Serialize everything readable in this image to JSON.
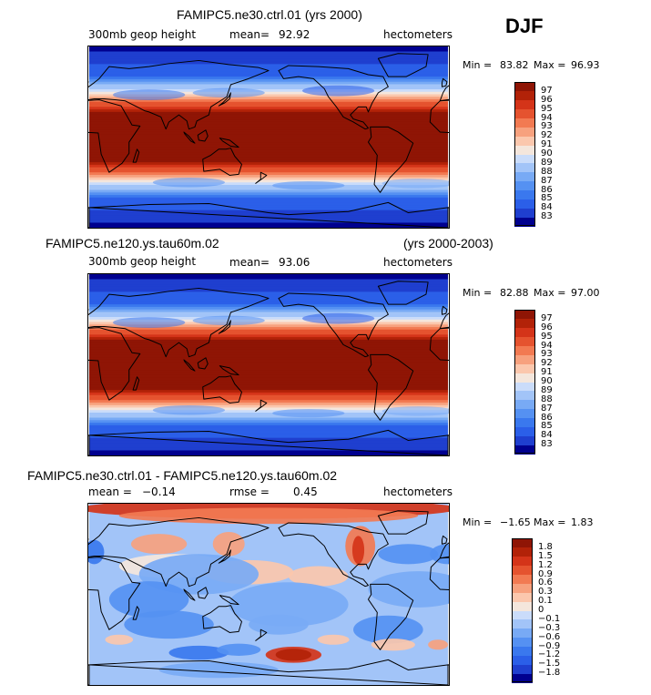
{
  "season": "DJF",
  "chart_data": [
    {
      "type": "heatmap",
      "title": "FAMIPC5.ne30.ctrl.01 (yrs 2000)",
      "variable": "300mb geop height",
      "mean_label": "mean=",
      "mean": "92.92",
      "units": "hectometers",
      "min_label": "Min =",
      "min": "83.82",
      "max_label": "Max =",
      "max": "96.93",
      "levels": [
        "83",
        "84",
        "85",
        "86",
        "87",
        "88",
        "89",
        "90",
        "91",
        "92",
        "93",
        "94",
        "95",
        "96",
        "97"
      ],
      "colors": [
        "#00008f",
        "#1f3fcf",
        "#2b5fe8",
        "#3a78ee",
        "#5591f2",
        "#78aaf5",
        "#a2c4f8",
        "#cadcfa",
        "#f4e6dc",
        "#fbc7ad",
        "#f7a17e",
        "#f27a52",
        "#e5532f",
        "#d43419",
        "#b22208",
        "#8f1505"
      ]
    },
    {
      "type": "heatmap",
      "title": "FAMIPC5.ne120.ys.tau60m.02",
      "title_right": "(yrs 2000-2003)",
      "variable": "300mb geop height",
      "mean_label": "mean=",
      "mean": "93.06",
      "units": "hectometers",
      "min_label": "Min =",
      "min": "82.88",
      "max_label": "Max =",
      "max": "97.00",
      "levels": [
        "83",
        "84",
        "85",
        "86",
        "87",
        "88",
        "89",
        "90",
        "91",
        "92",
        "93",
        "94",
        "95",
        "96",
        "97"
      ],
      "colors": [
        "#00008f",
        "#1f3fcf",
        "#2b5fe8",
        "#3a78ee",
        "#5591f2",
        "#78aaf5",
        "#a2c4f8",
        "#cadcfa",
        "#f4e6dc",
        "#fbc7ad",
        "#f7a17e",
        "#f27a52",
        "#e5532f",
        "#d43419",
        "#b22208",
        "#8f1505"
      ]
    },
    {
      "type": "heatmap",
      "title": "FAMIPC5.ne30.ctrl.01 - FAMIPC5.ne120.ys.tau60m.02",
      "mean_label": "mean =",
      "mean": "−0.14",
      "rmse_label": "rmse =",
      "rmse": "0.45",
      "units": "hectometers",
      "min_label": "Min =",
      "min": "−1.65",
      "max_label": "Max =",
      "max": "1.83",
      "levels": [
        "−1.8",
        "−1.5",
        "−1.2",
        "−0.9",
        "−0.6",
        "−0.3",
        "−0.1",
        "0",
        "0.1",
        "0.3",
        "0.6",
        "0.9",
        "1.2",
        "1.5",
        "1.8"
      ],
      "colors": [
        "#00008f",
        "#1f3fcf",
        "#2b5fe8",
        "#3a78ee",
        "#5591f2",
        "#78aaf5",
        "#a2c4f8",
        "#cadcfa",
        "#f4e6dc",
        "#fbc7ad",
        "#f7a17e",
        "#f27a52",
        "#e5532f",
        "#d43419",
        "#b22208",
        "#8f1505"
      ]
    }
  ]
}
